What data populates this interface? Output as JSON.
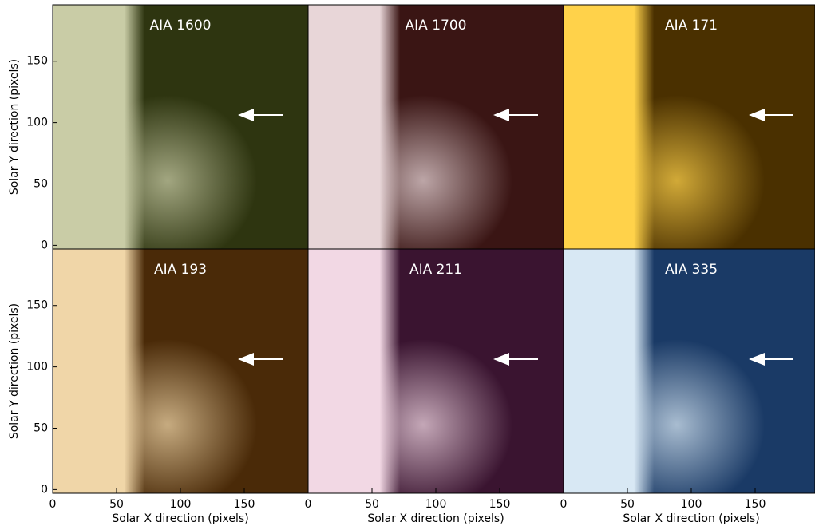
{
  "chart_data": [
    {
      "type": "image",
      "title": "AIA 1600",
      "colors": [
        "#2e3510",
        "#c9cca6"
      ],
      "xlim": [
        0,
        200
      ],
      "ylim": [
        -3,
        196
      ],
      "yticks": [
        0,
        50,
        100,
        150
      ],
      "ylabel": "Solar Y direction (pixels)"
    },
    {
      "type": "image",
      "title": "AIA 1700",
      "colors": [
        "#3a1514",
        "#e8d6d8"
      ],
      "xlim": [
        0,
        200
      ],
      "ylim": [
        -3,
        196
      ]
    },
    {
      "type": "image",
      "title": "AIA 171",
      "colors": [
        "#4a3000",
        "#ffd24a"
      ],
      "xlim": [
        0,
        200
      ],
      "ylim": [
        -3,
        196
      ]
    },
    {
      "type": "image",
      "title": "AIA 193",
      "colors": [
        "#4a2a08",
        "#f0d6a8"
      ],
      "xlim": [
        0,
        200
      ],
      "ylim": [
        -3,
        196
      ],
      "xticks": [
        0,
        50,
        100,
        150
      ],
      "yticks": [
        0,
        50,
        100,
        150
      ],
      "xlabel": "Solar X direction (pixels)",
      "ylabel": "Solar Y direction (pixels)"
    },
    {
      "type": "image",
      "title": "AIA 211",
      "colors": [
        "#3a1430",
        "#f2d8e4"
      ],
      "xlim": [
        0,
        200
      ],
      "ylim": [
        -3,
        196
      ],
      "xticks": [
        0,
        50,
        100,
        150
      ],
      "xlabel": "Solar X direction (pixels)"
    },
    {
      "type": "image",
      "title": "AIA 335",
      "colors": [
        "#1a3a66",
        "#d8e8f4"
      ],
      "xlim": [
        0,
        200
      ],
      "ylim": [
        -3,
        196
      ],
      "xticks": [
        0,
        50,
        100,
        150
      ],
      "xlabel": "Solar X direction (pixels)"
    }
  ]
}
